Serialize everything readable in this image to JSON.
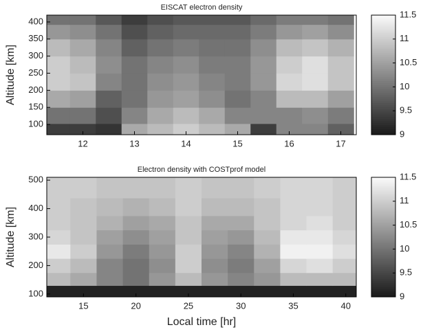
{
  "chart_data": [
    {
      "type": "heatmap",
      "title": "EISCAT electron density",
      "ylabel": "Altitude [km]",
      "colormap": "gray",
      "x": [
        11.5,
        12,
        12.5,
        13,
        13.5,
        14,
        14.5,
        15,
        15.5,
        16,
        16.5,
        17
      ],
      "y": [
        80,
        125,
        175,
        225,
        275,
        325,
        375,
        410
      ],
      "z": [
        [
          9.4,
          9.4,
          9.3,
          10.6,
          10.8,
          11,
          10.8,
          10.6,
          9.4,
          10.2,
          10.2,
          9.8
        ],
        [
          10,
          10,
          9.6,
          10.2,
          10.6,
          10.8,
          10.6,
          10.2,
          10.2,
          10.2,
          10.3,
          10.1
        ],
        [
          10.6,
          10.5,
          9.8,
          10,
          10.4,
          10.5,
          10.3,
          10,
          10.2,
          10.8,
          10.8,
          10.5
        ],
        [
          11,
          10.9,
          10.2,
          10,
          10.3,
          10.4,
          10.2,
          10.1,
          10.4,
          11.1,
          11.2,
          10.9
        ],
        [
          11,
          10.8,
          10.3,
          10,
          10.2,
          10.3,
          10.1,
          10.1,
          10.4,
          11,
          11.2,
          10.9
        ],
        [
          10.8,
          10.6,
          10.2,
          9.8,
          10,
          10.1,
          10,
          10,
          10.3,
          10.8,
          10.9,
          10.7
        ],
        [
          10.4,
          10.3,
          10,
          9.6,
          9.8,
          9.9,
          9.9,
          9.9,
          10.1,
          10.4,
          10.5,
          10.3
        ],
        [
          10,
          10,
          9.7,
          9.4,
          9.6,
          9.7,
          9.7,
          9.7,
          9.9,
          10.1,
          10.1,
          10
        ]
      ],
      "xlim": [
        11.3,
        17.3
      ],
      "xticks": [
        12,
        13,
        14,
        15,
        16,
        17
      ],
      "ylim": [
        70,
        420
      ],
      "yticks": [
        100,
        150,
        200,
        250,
        300,
        350,
        400
      ],
      "clim": [
        9,
        11.5
      ],
      "cticks": [
        9,
        9.5,
        10,
        10.5,
        11,
        11.5
      ]
    },
    {
      "type": "heatmap",
      "title": "Electron density with COSTprof model",
      "xlabel": "Local time [hr]",
      "ylabel": "Altitude [km]",
      "colormap": "gray",
      "x": [
        12.5,
        15,
        17.5,
        20,
        22.5,
        25,
        27.5,
        30,
        32.5,
        35,
        37.5,
        40
      ],
      "y": [
        110,
        150,
        200,
        250,
        300,
        350,
        400,
        475
      ],
      "z": [
        [
          9.1,
          9.1,
          9.1,
          9.1,
          9.1,
          9.1,
          9.1,
          9.1,
          9.1,
          9.1,
          9.1,
          9.1
        ],
        [
          10.8,
          10.6,
          10.2,
          10,
          10.4,
          10.8,
          10.4,
          10.2,
          10.4,
          10.8,
          10.8,
          10.8
        ],
        [
          11,
          10.8,
          10.2,
          10,
          10.3,
          11,
          10.3,
          10.1,
          10.5,
          11.1,
          11.2,
          11
        ],
        [
          11.3,
          11,
          10.4,
          10.1,
          10.4,
          11,
          10.4,
          10.2,
          10.7,
          11.4,
          11.4,
          11.2
        ],
        [
          11.1,
          10.9,
          10.5,
          10.3,
          10.5,
          10.9,
          10.5,
          10.4,
          10.8,
          11.3,
          11.3,
          11.1
        ],
        [
          11,
          10.9,
          10.7,
          10.5,
          10.6,
          10.9,
          10.6,
          10.6,
          10.9,
          11.1,
          11.2,
          11
        ],
        [
          11,
          10.9,
          10.8,
          10.7,
          10.8,
          11,
          10.8,
          10.8,
          10.9,
          11.1,
          11.1,
          11
        ],
        [
          11,
          11,
          10.9,
          10.9,
          10.9,
          11,
          10.9,
          10.9,
          11,
          11.1,
          11.1,
          11
        ]
      ],
      "xlim": [
        11.5,
        41
      ],
      "xticks": [
        15,
        20,
        25,
        30,
        35,
        40
      ],
      "ylim": [
        90,
        510
      ],
      "yticks": [
        100,
        200,
        300,
        400,
        500
      ],
      "clim": [
        9,
        11.5
      ],
      "cticks": [
        9,
        9.5,
        10,
        10.5,
        11,
        11.5
      ]
    }
  ]
}
